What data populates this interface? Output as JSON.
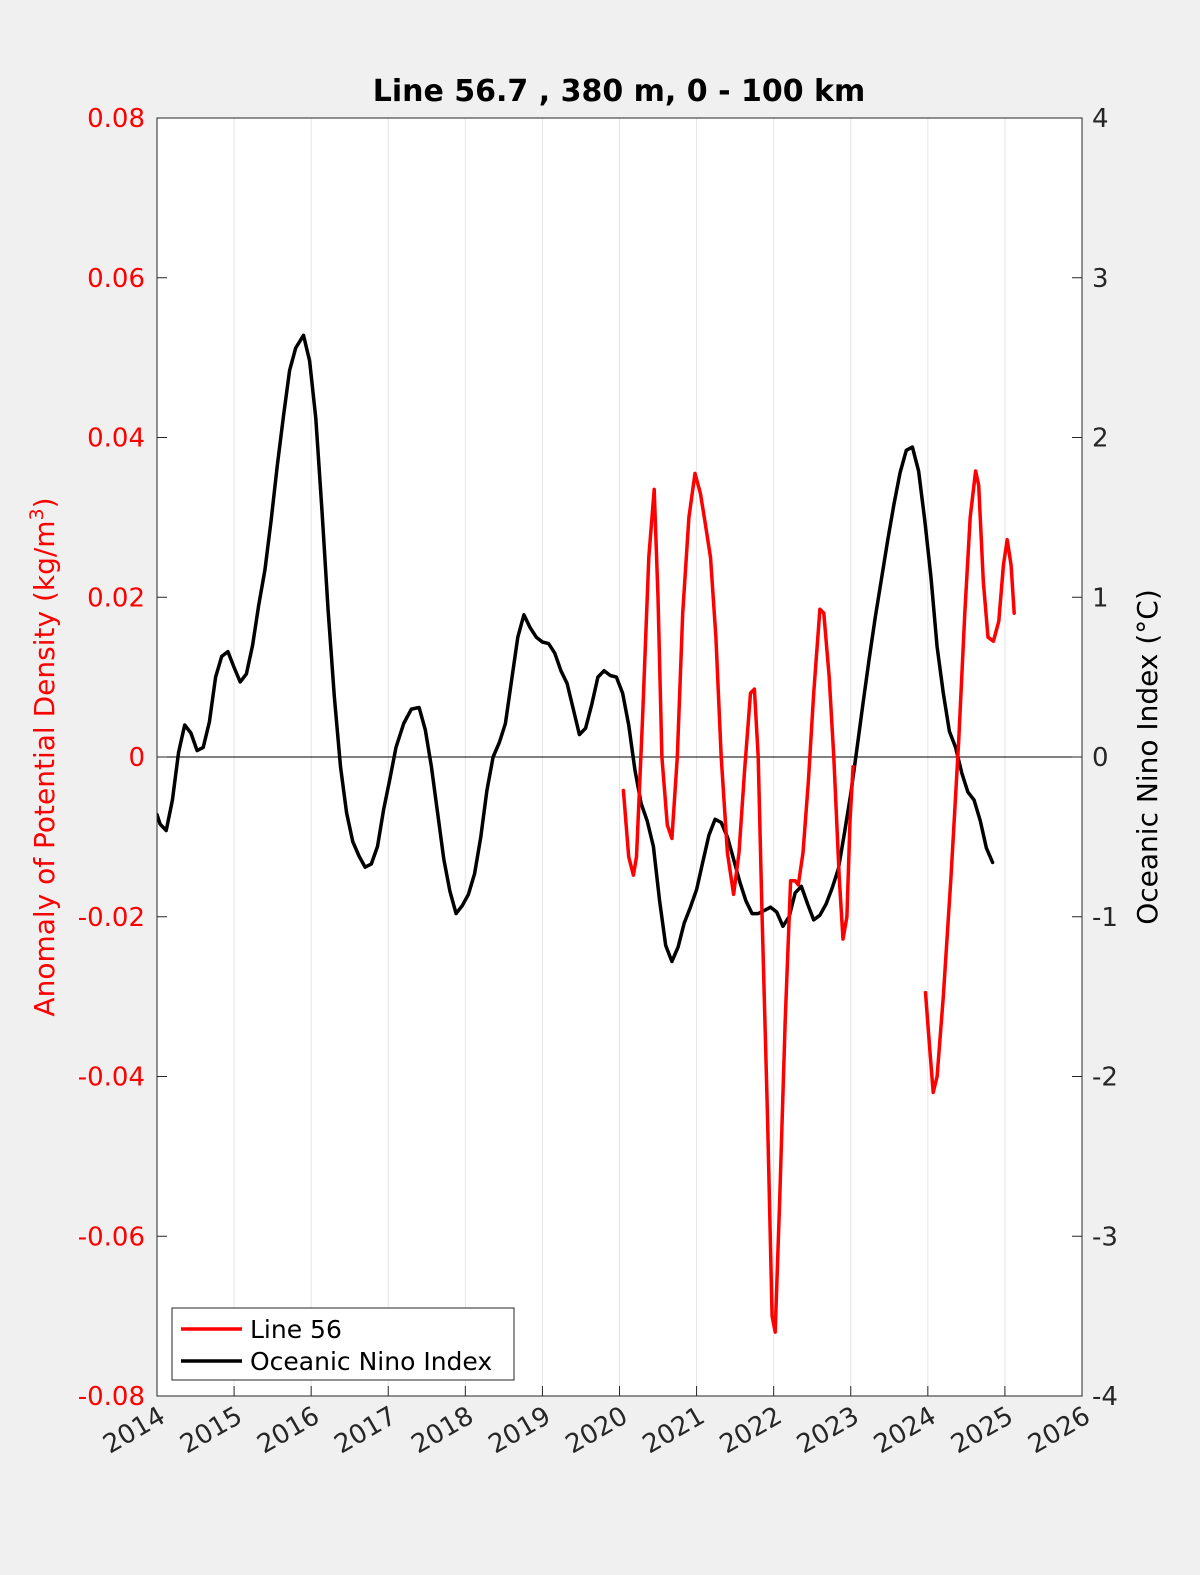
{
  "chart_data": {
    "type": "line",
    "title": "Line 56.7 , 380 m, 0 - 100 km",
    "xlabel": "",
    "ylabel_left": "Anomaly of Potential Density (kg/m",
    "ylabel_left_sup": "3",
    "ylabel_left_close": ")",
    "ylabel_right": "Oceanic Nino Index (°C)",
    "xlim": [
      2014,
      2026
    ],
    "ylim_left": [
      -0.08,
      0.08
    ],
    "ylim_right": [
      -4,
      4
    ],
    "x_ticks": [
      "2014",
      "2015",
      "2016",
      "2017",
      "2018",
      "2019",
      "2020",
      "2021",
      "2022",
      "2023",
      "2024",
      "2025",
      "2026"
    ],
    "y_left_ticks": [
      "0.08",
      "0.06",
      "0.04",
      "0.02",
      "0",
      "-0.02",
      "-0.04",
      "-0.06",
      "-0.08"
    ],
    "y_right_ticks": [
      "4",
      "3",
      "2",
      "1",
      "0",
      "-1",
      "-2",
      "-3",
      "-4"
    ],
    "grid": "vertical",
    "legend_position": "bottom-left",
    "colors": {
      "line56": "#ff0000",
      "oni": "#000000",
      "left_axis": "#ff0000"
    },
    "series": [
      {
        "name": "Line 56",
        "axis": "left",
        "segments": [
          [
            [
              2020.05,
              -0.0042
            ],
            [
              2020.12,
              -0.0125
            ],
            [
              2020.18,
              -0.0148
            ],
            [
              2020.22,
              -0.0125
            ],
            [
              2020.3,
              0.005
            ],
            [
              2020.38,
              0.025
            ],
            [
              2020.45,
              0.0335
            ],
            [
              2020.5,
              0.02
            ],
            [
              2020.55,
              0.0
            ],
            [
              2020.62,
              -0.0085
            ],
            [
              2020.68,
              -0.0102
            ],
            [
              2020.75,
              0.0
            ],
            [
              2020.82,
              0.018
            ],
            [
              2020.9,
              0.03
            ],
            [
              2020.98,
              0.0355
            ],
            [
              2021.05,
              0.033
            ],
            [
              2021.1,
              0.03
            ],
            [
              2021.18,
              0.025
            ],
            [
              2021.25,
              0.015
            ],
            [
              2021.32,
              0.0
            ],
            [
              2021.4,
              -0.012
            ],
            [
              2021.48,
              -0.0172
            ],
            [
              2021.55,
              -0.012
            ],
            [
              2021.62,
              -0.002
            ],
            [
              2021.7,
              0.008
            ],
            [
              2021.75,
              0.0085
            ],
            [
              2021.8,
              0.0
            ],
            [
              2021.85,
              -0.02
            ],
            [
              2021.92,
              -0.045
            ],
            [
              2021.98,
              -0.07
            ],
            [
              2022.02,
              -0.072
            ],
            [
              2022.08,
              -0.055
            ],
            [
              2022.15,
              -0.033
            ],
            [
              2022.22,
              -0.0155
            ],
            [
              2022.28,
              -0.0155
            ],
            [
              2022.32,
              -0.016
            ],
            [
              2022.38,
              -0.012
            ],
            [
              2022.45,
              -0.003
            ],
            [
              2022.52,
              0.008
            ],
            [
              2022.6,
              0.0185
            ],
            [
              2022.65,
              0.018
            ],
            [
              2022.72,
              0.01
            ],
            [
              2022.78,
              0.0
            ],
            [
              2022.85,
              -0.015
            ],
            [
              2022.9,
              -0.0228
            ],
            [
              2022.95,
              -0.02
            ],
            [
              2022.99,
              -0.008
            ],
            [
              2023.03,
              -0.0012
            ]
          ],
          [
            [
              2023.97,
              -0.0295
            ],
            [
              2024.02,
              -0.036
            ],
            [
              2024.07,
              -0.042
            ],
            [
              2024.12,
              -0.04
            ],
            [
              2024.2,
              -0.03
            ],
            [
              2024.3,
              -0.015
            ],
            [
              2024.4,
              0.002
            ],
            [
              2024.48,
              0.018
            ],
            [
              2024.55,
              0.03
            ],
            [
              2024.62,
              0.0358
            ],
            [
              2024.66,
              0.034
            ],
            [
              2024.72,
              0.022
            ],
            [
              2024.78,
              0.015
            ],
            [
              2024.85,
              0.0145
            ],
            [
              2024.92,
              0.017
            ],
            [
              2024.98,
              0.024
            ],
            [
              2025.03,
              0.0272
            ],
            [
              2025.08,
              0.024
            ],
            [
              2025.12,
              0.018
            ]
          ]
        ]
      },
      {
        "name": "Oceanic Nino Index",
        "axis": "right",
        "values": [
          [
            2014.0,
            -0.36
          ],
          [
            2014.04,
            -0.42
          ],
          [
            2014.12,
            -0.46
          ],
          [
            2014.2,
            -0.27
          ],
          [
            2014.28,
            0.03
          ],
          [
            2014.36,
            0.2
          ],
          [
            2014.44,
            0.15
          ],
          [
            2014.52,
            0.04
          ],
          [
            2014.6,
            0.06
          ],
          [
            2014.68,
            0.22
          ],
          [
            2014.76,
            0.5
          ],
          [
            2014.84,
            0.63
          ],
          [
            2014.92,
            0.66
          ],
          [
            2015.0,
            0.56
          ],
          [
            2015.08,
            0.47
          ],
          [
            2015.16,
            0.52
          ],
          [
            2015.24,
            0.7
          ],
          [
            2015.32,
            0.95
          ],
          [
            2015.4,
            1.17
          ],
          [
            2015.48,
            1.48
          ],
          [
            2015.56,
            1.82
          ],
          [
            2015.64,
            2.13
          ],
          [
            2015.72,
            2.42
          ],
          [
            2015.8,
            2.56
          ],
          [
            2015.9,
            2.64
          ],
          [
            2015.98,
            2.48
          ],
          [
            2016.06,
            2.12
          ],
          [
            2016.14,
            1.54
          ],
          [
            2016.22,
            0.92
          ],
          [
            2016.3,
            0.38
          ],
          [
            2016.38,
            -0.06
          ],
          [
            2016.46,
            -0.35
          ],
          [
            2016.54,
            -0.53
          ],
          [
            2016.62,
            -0.62
          ],
          [
            2016.7,
            -0.69
          ],
          [
            2016.78,
            -0.67
          ],
          [
            2016.86,
            -0.56
          ],
          [
            2016.94,
            -0.33
          ],
          [
            2017.02,
            -0.14
          ],
          [
            2017.1,
            0.06
          ],
          [
            2017.2,
            0.21
          ],
          [
            2017.3,
            0.3
          ],
          [
            2017.4,
            0.31
          ],
          [
            2017.48,
            0.17
          ],
          [
            2017.56,
            -0.06
          ],
          [
            2017.64,
            -0.35
          ],
          [
            2017.72,
            -0.64
          ],
          [
            2017.8,
            -0.84
          ],
          [
            2017.88,
            -0.98
          ],
          [
            2017.96,
            -0.93
          ],
          [
            2018.04,
            -0.86
          ],
          [
            2018.12,
            -0.73
          ],
          [
            2018.2,
            -0.5
          ],
          [
            2018.28,
            -0.21
          ],
          [
            2018.36,
            0.0
          ],
          [
            2018.44,
            0.09
          ],
          [
            2018.52,
            0.21
          ],
          [
            2018.6,
            0.48
          ],
          [
            2018.68,
            0.75
          ],
          [
            2018.76,
            0.89
          ],
          [
            2018.84,
            0.81
          ],
          [
            2018.92,
            0.75
          ],
          [
            2019.0,
            0.72
          ],
          [
            2019.08,
            0.71
          ],
          [
            2019.16,
            0.65
          ],
          [
            2019.24,
            0.54
          ],
          [
            2019.32,
            0.46
          ],
          [
            2019.4,
            0.3
          ],
          [
            2019.48,
            0.14
          ],
          [
            2019.56,
            0.18
          ],
          [
            2019.64,
            0.33
          ],
          [
            2019.72,
            0.5
          ],
          [
            2019.8,
            0.54
          ],
          [
            2019.88,
            0.51
          ],
          [
            2019.96,
            0.5
          ],
          [
            2020.04,
            0.4
          ],
          [
            2020.12,
            0.2
          ],
          [
            2020.2,
            -0.08
          ],
          [
            2020.28,
            -0.29
          ],
          [
            2020.36,
            -0.4
          ],
          [
            2020.44,
            -0.56
          ],
          [
            2020.52,
            -0.9
          ],
          [
            2020.6,
            -1.18
          ],
          [
            2020.68,
            -1.28
          ],
          [
            2020.76,
            -1.19
          ],
          [
            2020.84,
            -1.04
          ],
          [
            2020.92,
            -0.94
          ],
          [
            2021.0,
            -0.83
          ],
          [
            2021.08,
            -0.66
          ],
          [
            2021.16,
            -0.49
          ],
          [
            2021.24,
            -0.39
          ],
          [
            2021.32,
            -0.41
          ],
          [
            2021.4,
            -0.5
          ],
          [
            2021.48,
            -0.64
          ],
          [
            2021.56,
            -0.78
          ],
          [
            2021.64,
            -0.9
          ],
          [
            2021.72,
            -0.98
          ],
          [
            2021.8,
            -0.98
          ],
          [
            2021.88,
            -0.96
          ],
          [
            2021.96,
            -0.94
          ],
          [
            2022.04,
            -0.97
          ],
          [
            2022.12,
            -1.06
          ],
          [
            2022.2,
            -1.0
          ],
          [
            2022.28,
            -0.85
          ],
          [
            2022.36,
            -0.81
          ],
          [
            2022.44,
            -0.92
          ],
          [
            2022.52,
            -1.02
          ],
          [
            2022.6,
            -0.99
          ],
          [
            2022.68,
            -0.92
          ],
          [
            2022.76,
            -0.82
          ],
          [
            2022.84,
            -0.7
          ],
          [
            2022.92,
            -0.47
          ],
          [
            2023.0,
            -0.23
          ],
          [
            2023.08,
            0.05
          ],
          [
            2023.16,
            0.34
          ],
          [
            2023.24,
            0.62
          ],
          [
            2023.32,
            0.88
          ],
          [
            2023.4,
            1.12
          ],
          [
            2023.48,
            1.36
          ],
          [
            2023.56,
            1.58
          ],
          [
            2023.64,
            1.78
          ],
          [
            2023.72,
            1.92
          ],
          [
            2023.8,
            1.94
          ],
          [
            2023.88,
            1.79
          ],
          [
            2023.96,
            1.48
          ],
          [
            2024.04,
            1.13
          ],
          [
            2024.12,
            0.69
          ],
          [
            2024.2,
            0.4
          ],
          [
            2024.28,
            0.16
          ],
          [
            2024.36,
            0.06
          ],
          [
            2024.44,
            -0.1
          ],
          [
            2024.52,
            -0.22
          ],
          [
            2024.6,
            -0.27
          ],
          [
            2024.68,
            -0.4
          ],
          [
            2024.76,
            -0.57
          ],
          [
            2024.84,
            -0.66
          ]
        ]
      }
    ]
  }
}
